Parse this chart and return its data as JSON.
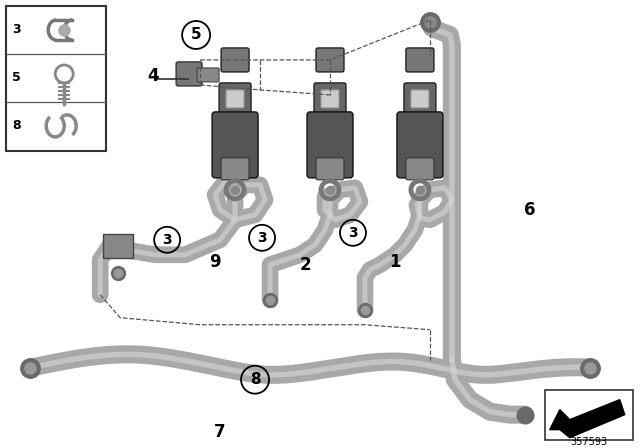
{
  "bg_color": "#ffffff",
  "part_number": "357593",
  "tube_color": "#a8a8a8",
  "tube_dark": "#6a6a6a",
  "valve_body": "#555555",
  "valve_mid": "#6e6e6e",
  "valve_top": "#888888",
  "leader_color": "#555555",
  "inset_border": "#333333"
}
